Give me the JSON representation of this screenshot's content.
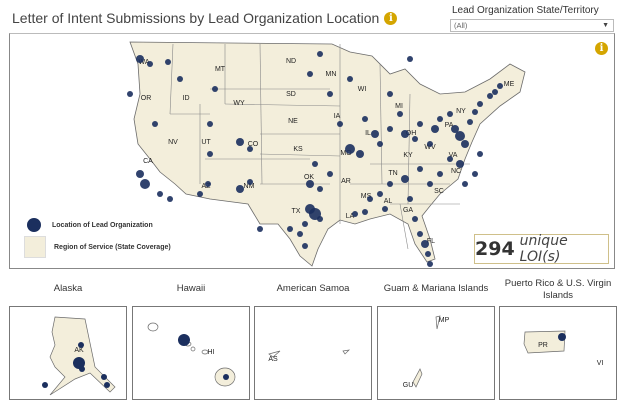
{
  "header": {
    "title": "Letter of Intent Submissions by Lead Organization Location",
    "info_icon": "info-icon"
  },
  "filter": {
    "label": "Lead Organization State/Territory",
    "value": "(All)"
  },
  "legend": {
    "dot_label": "Location of Lead Organization",
    "region_label": "Region of Service (State Coverage)"
  },
  "summary": {
    "count": "294",
    "suffix": "unique LOI(s)"
  },
  "colors": {
    "dot": "#1b2f5e",
    "land": "#f3eedb",
    "border": "#6b6b6b",
    "info": "#d4a500"
  },
  "states": [
    "WA",
    "MT",
    "ND",
    "MN",
    "WI",
    "MI",
    "ME",
    "OR",
    "ID",
    "WY",
    "SD",
    "NY",
    "NE",
    "IA",
    "IL",
    "OH",
    "PA",
    "NV",
    "UT",
    "CO",
    "KS",
    "MO",
    "KY",
    "WV",
    "VA",
    "CA",
    "AZ",
    "NM",
    "OK",
    "AR",
    "TN",
    "NC",
    "SC",
    "MS",
    "AL",
    "GA",
    "TX",
    "LA",
    "FL"
  ],
  "insets": [
    {
      "title": "Alaska",
      "labels": [
        "AK"
      ]
    },
    {
      "title": "Hawaii",
      "labels": [
        "HI"
      ]
    },
    {
      "title": "American Samoa",
      "labels": [
        "AS"
      ]
    },
    {
      "title": "Guam & Mariana Islands",
      "labels": [
        "MP",
        "GU"
      ]
    },
    {
      "title": "Puerto Rico & U.S. Virgin Islands",
      "labels": [
        "PR",
        "VI"
      ]
    }
  ]
}
